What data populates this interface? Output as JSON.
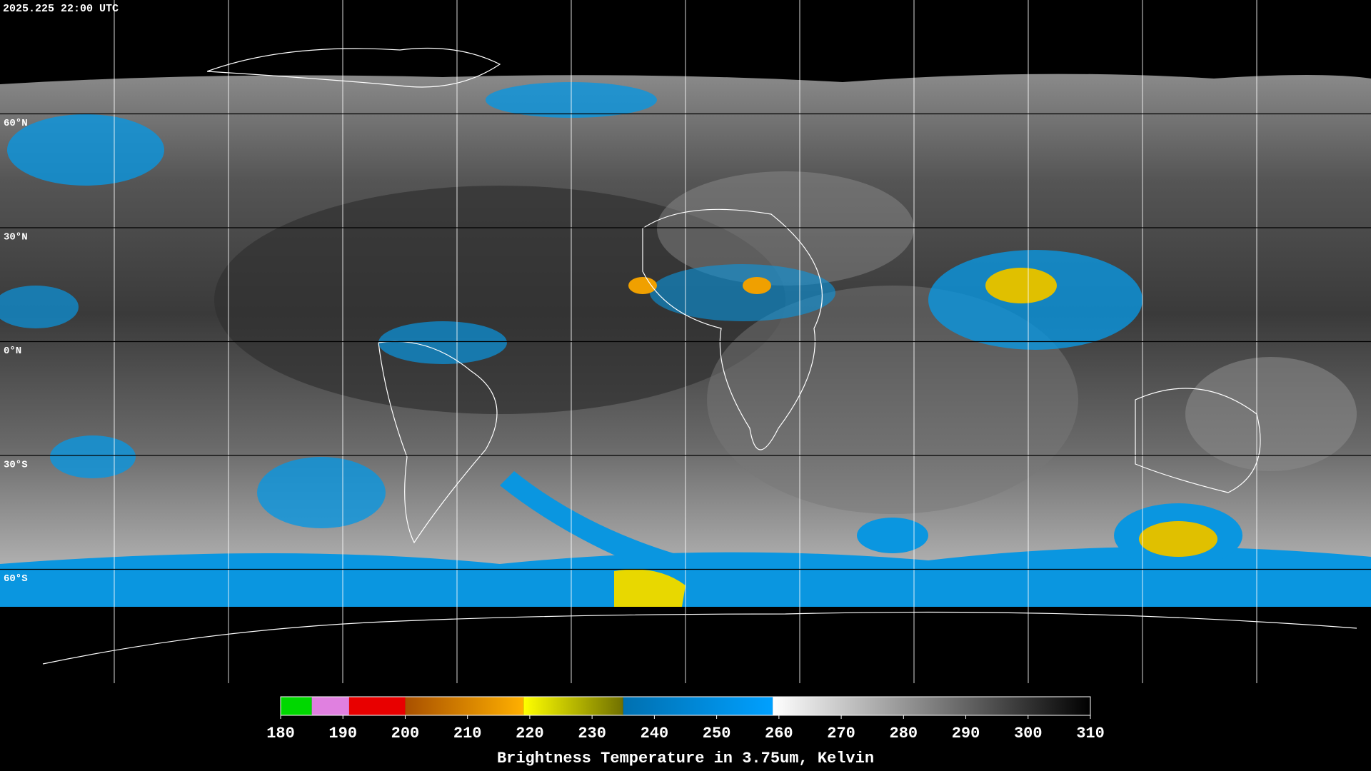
{
  "header": {
    "timestamp": "2025.225 22:00 UTC"
  },
  "map": {
    "lat_lines": [
      {
        "value": 60,
        "label": "60°N"
      },
      {
        "value": 30,
        "label": "30°N"
      },
      {
        "value": 0,
        "label": "0°N"
      },
      {
        "value": -30,
        "label": "30°S"
      },
      {
        "value": -60,
        "label": "60°S"
      }
    ]
  },
  "colorbar": {
    "range": [
      180,
      310
    ],
    "ticks": [
      180,
      190,
      200,
      210,
      220,
      230,
      240,
      250,
      260,
      270,
      280,
      290,
      300,
      310
    ],
    "label": "Brightness Temperature in 3.75um, Kelvin",
    "segments": [
      {
        "from": 180,
        "to": 185,
        "colors": [
          "#00d800",
          "#00d800"
        ]
      },
      {
        "from": 185,
        "to": 191,
        "colors": [
          "#e080e0",
          "#e080e0"
        ]
      },
      {
        "from": 191,
        "to": 200,
        "colors": [
          "#e80000",
          "#e80000"
        ]
      },
      {
        "from": 200,
        "to": 219,
        "colors": [
          "#a85000",
          "#ffb000"
        ]
      },
      {
        "from": 219,
        "to": 235,
        "colors": [
          "#ffff00",
          "#707000"
        ]
      },
      {
        "from": 235,
        "to": 259,
        "colors": [
          "#0070b0",
          "#00a0ff"
        ]
      },
      {
        "from": 259,
        "to": 310,
        "colors": [
          "#ffffff",
          "#000000"
        ]
      }
    ]
  }
}
